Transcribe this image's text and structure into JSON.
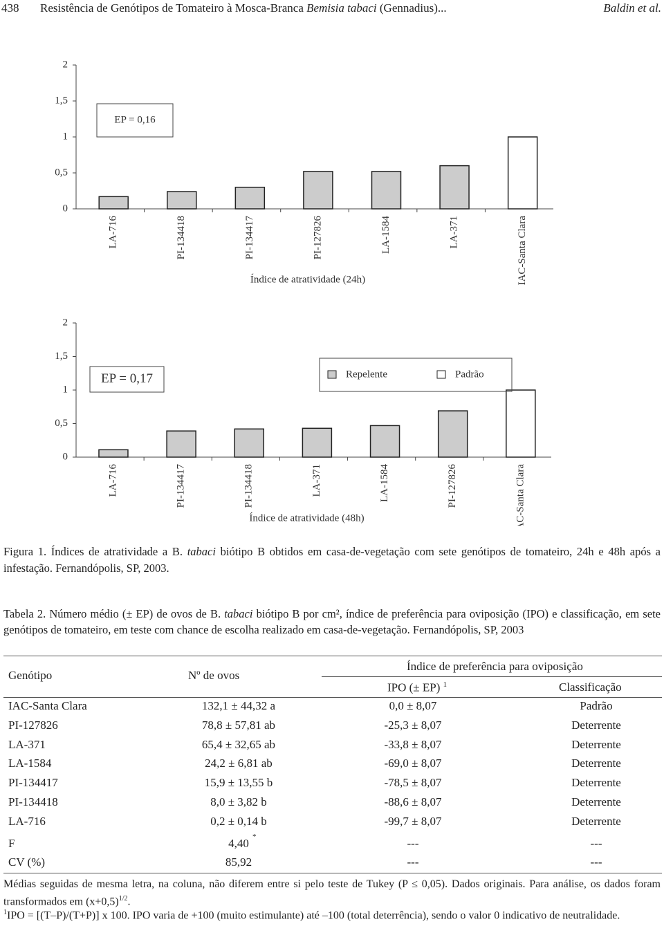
{
  "header": {
    "page": "438",
    "title_parts": [
      "Resistência de Genótipos de Tomateiro à Mosca-Branca ",
      "Bemisia tabaci",
      " (Gennadius)..."
    ],
    "authors": "Baldin et al."
  },
  "chart_data": [
    {
      "type": "bar",
      "annotation": "EP = 0,16",
      "xlabel": "Índice de atratividade (24h)",
      "categories": [
        "LA-716",
        "PI-134418",
        "PI-134417",
        "PI-127826",
        "LA-1584",
        "LA-371",
        "IAC-Santa Clara"
      ],
      "values": [
        0.17,
        0.24,
        0.3,
        0.52,
        0.52,
        0.6,
        1.0
      ],
      "colors": [
        "#cccccc",
        "#cccccc",
        "#cccccc",
        "#cccccc",
        "#cccccc",
        "#cccccc",
        "#ffffff"
      ],
      "ylim": [
        0,
        2
      ],
      "yticks": [
        0,
        {
          "value": 0.5,
          "label": "0,5"
        },
        1,
        {
          "value": 1.5,
          "label": "1,5"
        },
        2
      ]
    },
    {
      "type": "bar",
      "annotation": "EP = 0,17",
      "xlabel": "Índice de atratividade (48h)",
      "categories": [
        "LA-716",
        "PI-134417",
        "PI-134418",
        "LA-371",
        "LA-1584",
        "PI-127826",
        "IAC-Santa Clara"
      ],
      "values": [
        0.11,
        0.39,
        0.42,
        0.43,
        0.47,
        0.69,
        1.0
      ],
      "colors": [
        "#cccccc",
        "#cccccc",
        "#cccccc",
        "#cccccc",
        "#cccccc",
        "#cccccc",
        "#ffffff"
      ],
      "legend": [
        {
          "name": "Repelente",
          "color": "#cccccc"
        },
        {
          "name": "Padrão",
          "color": "#ffffff"
        }
      ],
      "ylim": [
        0,
        2
      ],
      "yticks": [
        0,
        {
          "value": 0.5,
          "label": "0,5"
        },
        1,
        {
          "value": 1.5,
          "label": "1,5"
        },
        2
      ]
    }
  ],
  "caption": [
    "Figura 1. Índices de atratividade a B. ",
    "tabaci",
    " biótipo B obtidos em casa-de-vegetação com sete genótipos de tomateiro, 24h e 48h após a infestação. Fernandópolis, SP, 2003."
  ],
  "table": {
    "title": [
      "Tabela 2. Número médio (± EP) de ovos de B. ",
      "tabaci",
      " biótipo B por cm², índice de preferência para oviposição (IPO) e classificação, em sete genótipos de tomateiro, em teste com chance de escolha realizado em casa-de-vegetação. Fernandópolis, SP, 2003"
    ],
    "headers": {
      "genotype": "Genótipo",
      "eggs": "Nº de ovos",
      "group": "Índice de preferência para oviposição",
      "ipo": "IPO (± EP)",
      "ipo_mark": "1",
      "class": "Classificação"
    },
    "rows": [
      [
        "IAC-Santa Clara",
        "132,1 ± 44,32 a",
        "0,0 ± 8,07",
        "Padrão"
      ],
      [
        "PI-127826",
        "78,8 ± 57,81 ab",
        "-25,3 ± 8,07",
        "Deterrente"
      ],
      [
        "LA-371",
        "65,4 ± 32,65 ab",
        "-33,8 ± 8,07",
        "Deterrente"
      ],
      [
        "LA-1584",
        "24,2 ± 6,81 ab",
        "-69,0 ± 8,07",
        "Deterrente"
      ],
      [
        "PI-134417",
        "15,9 ± 13,55 b",
        "-78,5 ± 8,07",
        "Deterrente"
      ],
      [
        "PI-134418",
        "8,0 ± 3,82 b",
        "-88,6 ± 8,07",
        "Deterrente"
      ],
      [
        "LA-716",
        "0,2 ± 0,14 b",
        "-99,7 ± 8,07",
        "Deterrente"
      ],
      [
        "F",
        "4,40",
        "---",
        "---"
      ],
      [
        "CV (%)",
        "85,92",
        "---",
        "---"
      ]
    ],
    "f_mark": "*"
  },
  "notes": {
    "tukey": [
      "Médias seguidas de mesma letra, na coluna, não diferem entre si pelo teste de Tukey (P ≤ 0,05). Dados originais. Para análise, os dados foram transformados em (x+0,5)",
      "1/2",
      "."
    ],
    "ipo": [
      "1",
      "IPO = [(T–P)/(T+P)] x 100. IPO varia de +100 (muito estimulante) até –100 (total deterrência), sendo o valor 0 indicativo de neutralidade."
    ]
  }
}
